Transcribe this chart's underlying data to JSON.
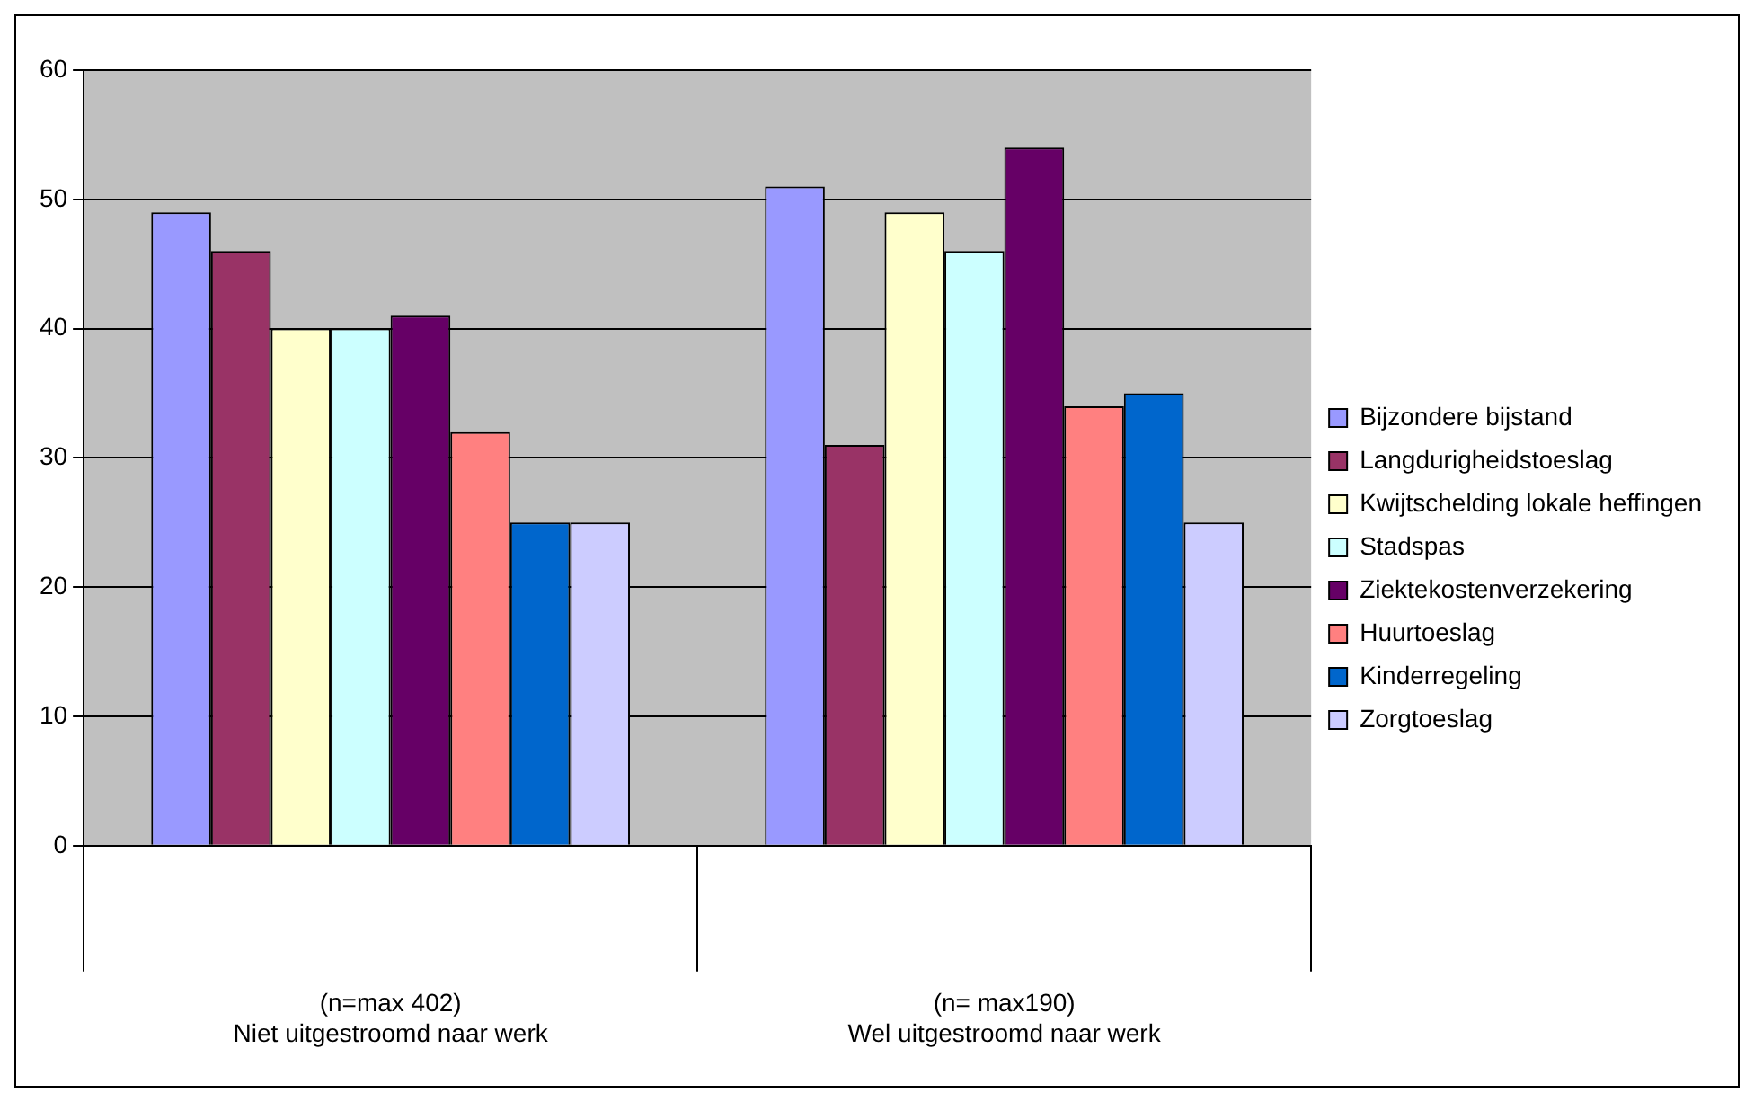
{
  "chart_data": {
    "type": "bar",
    "categories": [
      "(n=max 402)\nNiet uitgestroomd naar werk",
      "(n= max190)\nWel uitgestroomd naar werk"
    ],
    "series": [
      {
        "name": "Bijzondere bijstand",
        "color": "#9999ff",
        "values": [
          49,
          51
        ]
      },
      {
        "name": "Langdurigheidstoeslag",
        "color": "#993366",
        "values": [
          46,
          31
        ]
      },
      {
        "name": "Kwijtschelding lokale heffingen",
        "color": "#ffffcc",
        "values": [
          40,
          49
        ]
      },
      {
        "name": "Stadspas",
        "color": "#ccffff",
        "values": [
          40,
          46
        ]
      },
      {
        "name": "Ziektekostenverzekering",
        "color": "#660066",
        "values": [
          41,
          54
        ]
      },
      {
        "name": "Huurtoeslag",
        "color": "#ff8080",
        "values": [
          32,
          34
        ]
      },
      {
        "name": "Kinderregeling",
        "color": "#0066cc",
        "values": [
          25,
          35
        ]
      },
      {
        "name": "Zorgtoeslag",
        "color": "#ccccff",
        "values": [
          25,
          25
        ]
      }
    ],
    "ylim": [
      0,
      60
    ],
    "yticks": [
      0,
      10,
      20,
      30,
      40,
      50,
      60
    ],
    "grid": "y",
    "legend": "right"
  }
}
